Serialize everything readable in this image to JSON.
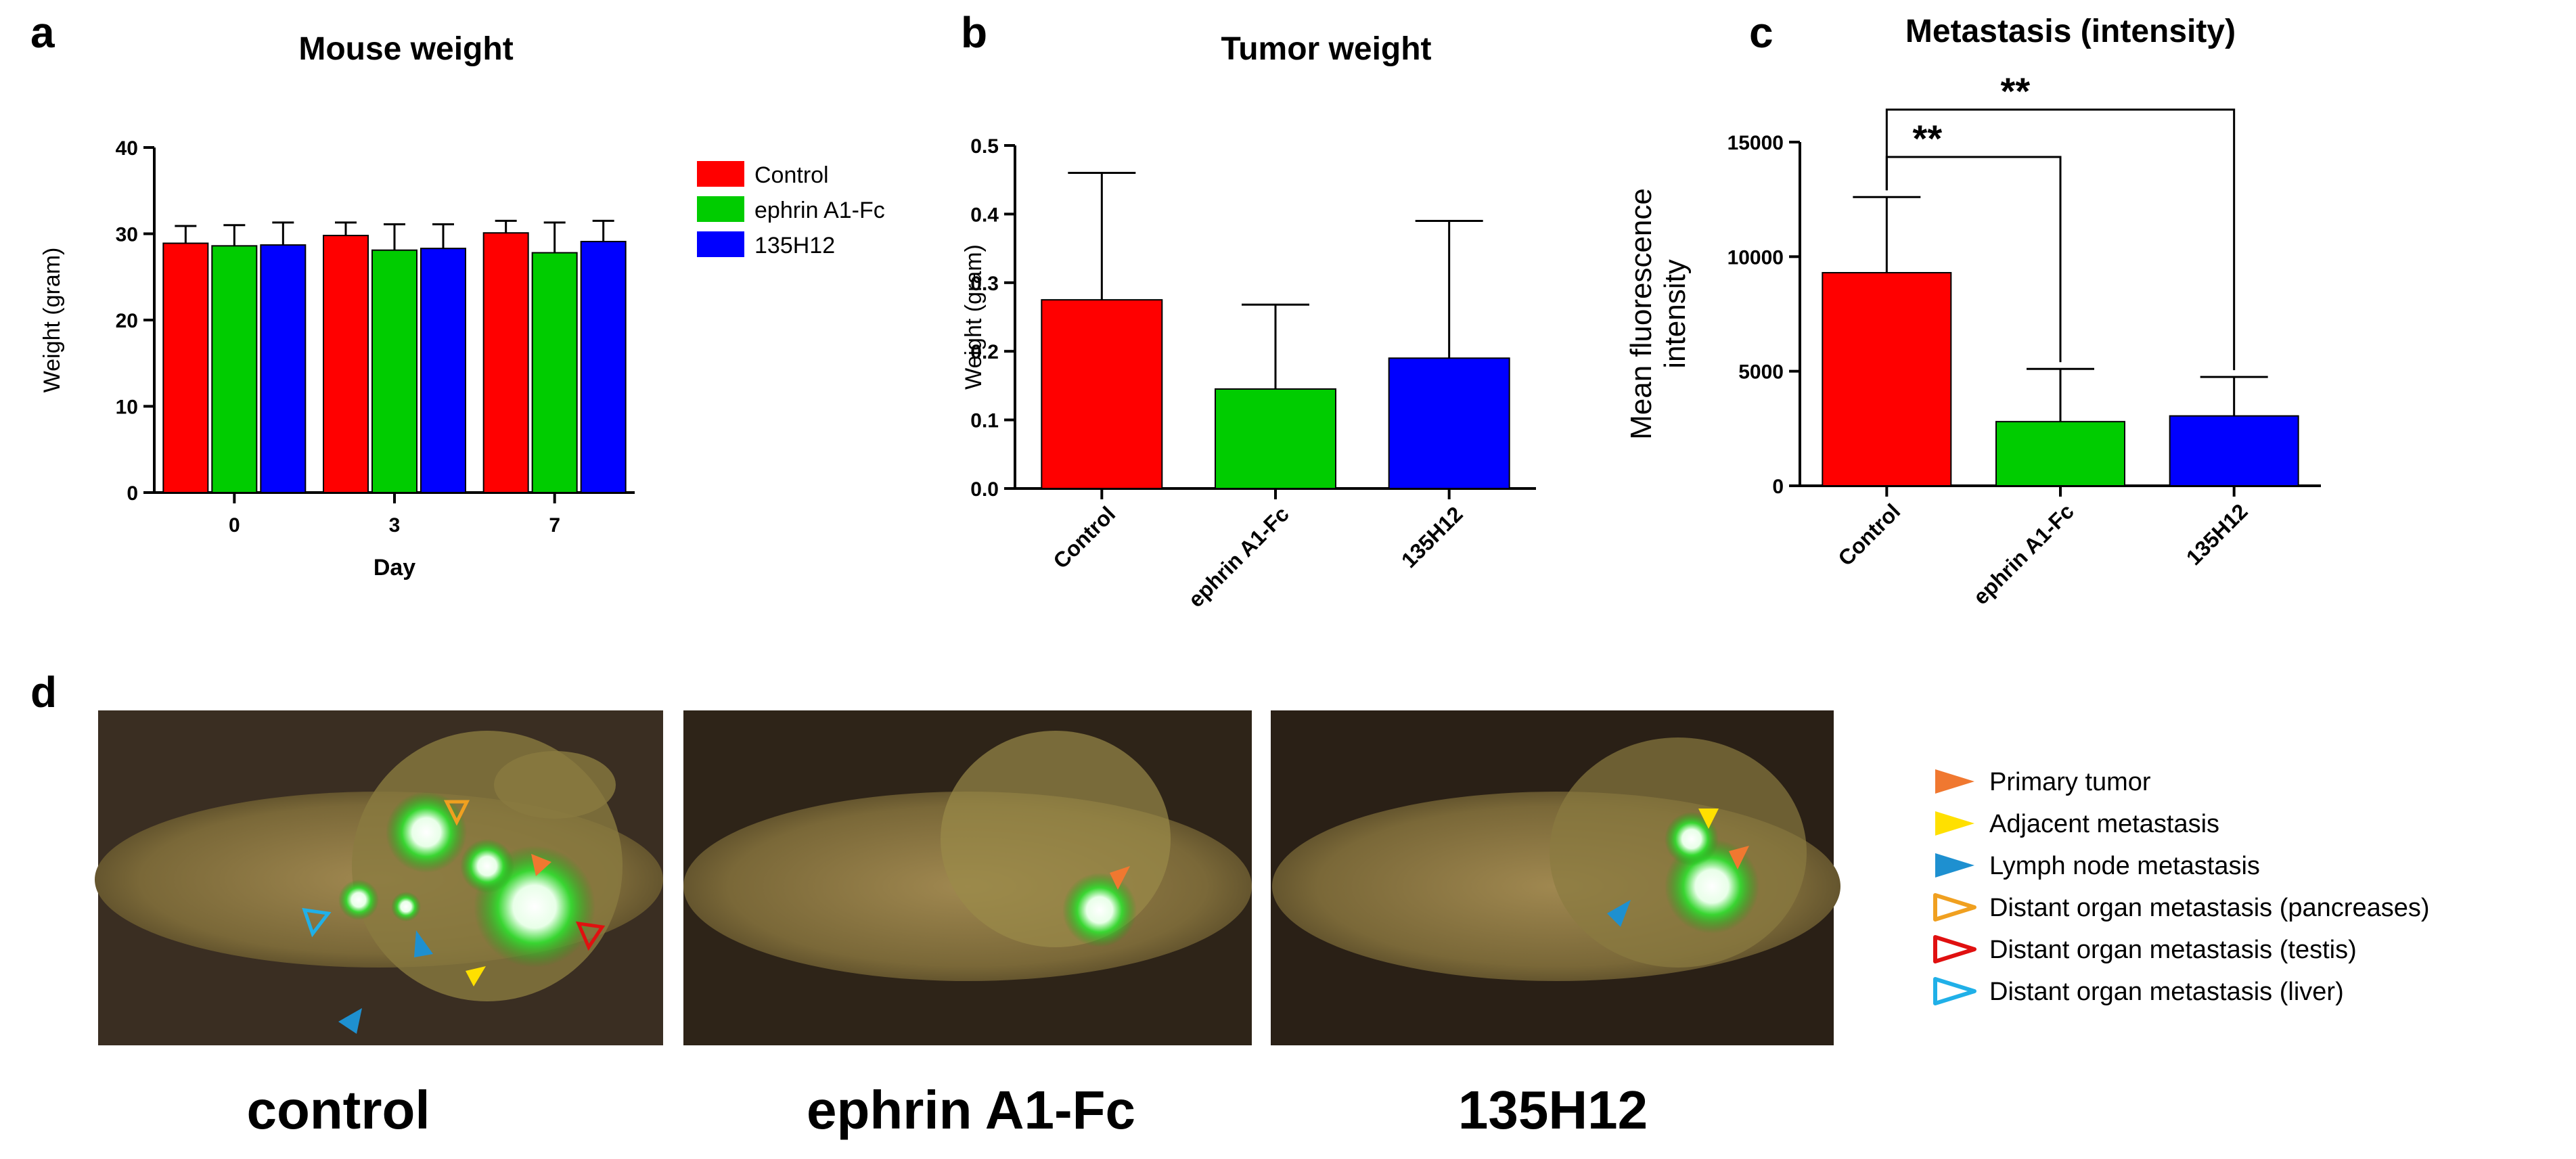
{
  "panels": {
    "a": "a",
    "b": "b",
    "c": "c",
    "d": "d"
  },
  "chart_data": [
    {
      "type": "bar",
      "title": "Mouse weight",
      "xlabel": "Day",
      "ylabel": "Weight (gram)",
      "ylim": [
        0,
        40
      ],
      "yticks": [
        "0",
        "10",
        "20",
        "30",
        "40"
      ],
      "categories": [
        "0",
        "3",
        "7"
      ],
      "series": [
        {
          "name": "Control",
          "color": "#ff0000",
          "values": [
            28.9,
            29.8,
            30.1
          ],
          "errors": [
            2.0,
            1.5,
            1.4
          ]
        },
        {
          "name": "ephrin A1-Fc",
          "color": "#00cc00",
          "values": [
            28.6,
            28.1,
            27.8
          ],
          "errors": [
            2.4,
            3.0,
            3.5
          ]
        },
        {
          "name": "135H12",
          "color": "#0000ff",
          "values": [
            28.7,
            28.3,
            29.1
          ],
          "errors": [
            2.6,
            2.8,
            2.4
          ]
        }
      ],
      "legend": "right"
    },
    {
      "type": "bar",
      "title": "Tumor weight",
      "xlabel": "",
      "ylabel": "Weight (gram)",
      "ylim": [
        0,
        0.5
      ],
      "yticks": [
        "0.0",
        "0.1",
        "0.2",
        "0.3",
        "0.4",
        "0.5"
      ],
      "categories": [
        "Control",
        "ephrin A1-Fc",
        "135H12"
      ],
      "colors": [
        "#ff0000",
        "#00cc00",
        "#0000ff"
      ],
      "values": [
        0.275,
        0.145,
        0.19
      ],
      "errors": [
        0.185,
        0.123,
        0.2
      ]
    },
    {
      "type": "bar",
      "title": "Metastasis (intensity)",
      "xlabel": "",
      "ylabel_lines": [
        "Mean fluorescence",
        "intensity"
      ],
      "ylim": [
        0,
        15000
      ],
      "yticks": [
        "0",
        "5000",
        "10000",
        "15000"
      ],
      "categories": [
        "Control",
        "ephrin A1-Fc",
        "135H12"
      ],
      "colors": [
        "#ff0000",
        "#00cc00",
        "#0000ff"
      ],
      "values": [
        9300,
        2800,
        3050
      ],
      "errors": [
        3300,
        2300,
        1700
      ],
      "significance": [
        {
          "from": "Control",
          "to": "ephrin A1-Fc",
          "label": "**"
        },
        {
          "from": "Control",
          "to": "135H12",
          "label": "**"
        }
      ]
    }
  ],
  "photos": {
    "captions": [
      "control",
      "ephrin A1-Fc",
      "135H12"
    ],
    "legend": [
      {
        "label": "Primary tumor",
        "color": "#f07830",
        "filled": true
      },
      {
        "label": "Adjacent metastasis",
        "color": "#ffe000",
        "filled": true
      },
      {
        "label": "Lymph node metastasis",
        "color": "#1e90d0",
        "filled": true
      },
      {
        "label": "Distant organ metastasis (pancreases)",
        "color": "#f0a020",
        "filled": false
      },
      {
        "label": "Distant organ metastasis (testis)",
        "color": "#e01010",
        "filled": false
      },
      {
        "label": "Distant organ metastasis (liver)",
        "color": "#20b0e8",
        "filled": false
      }
    ]
  }
}
